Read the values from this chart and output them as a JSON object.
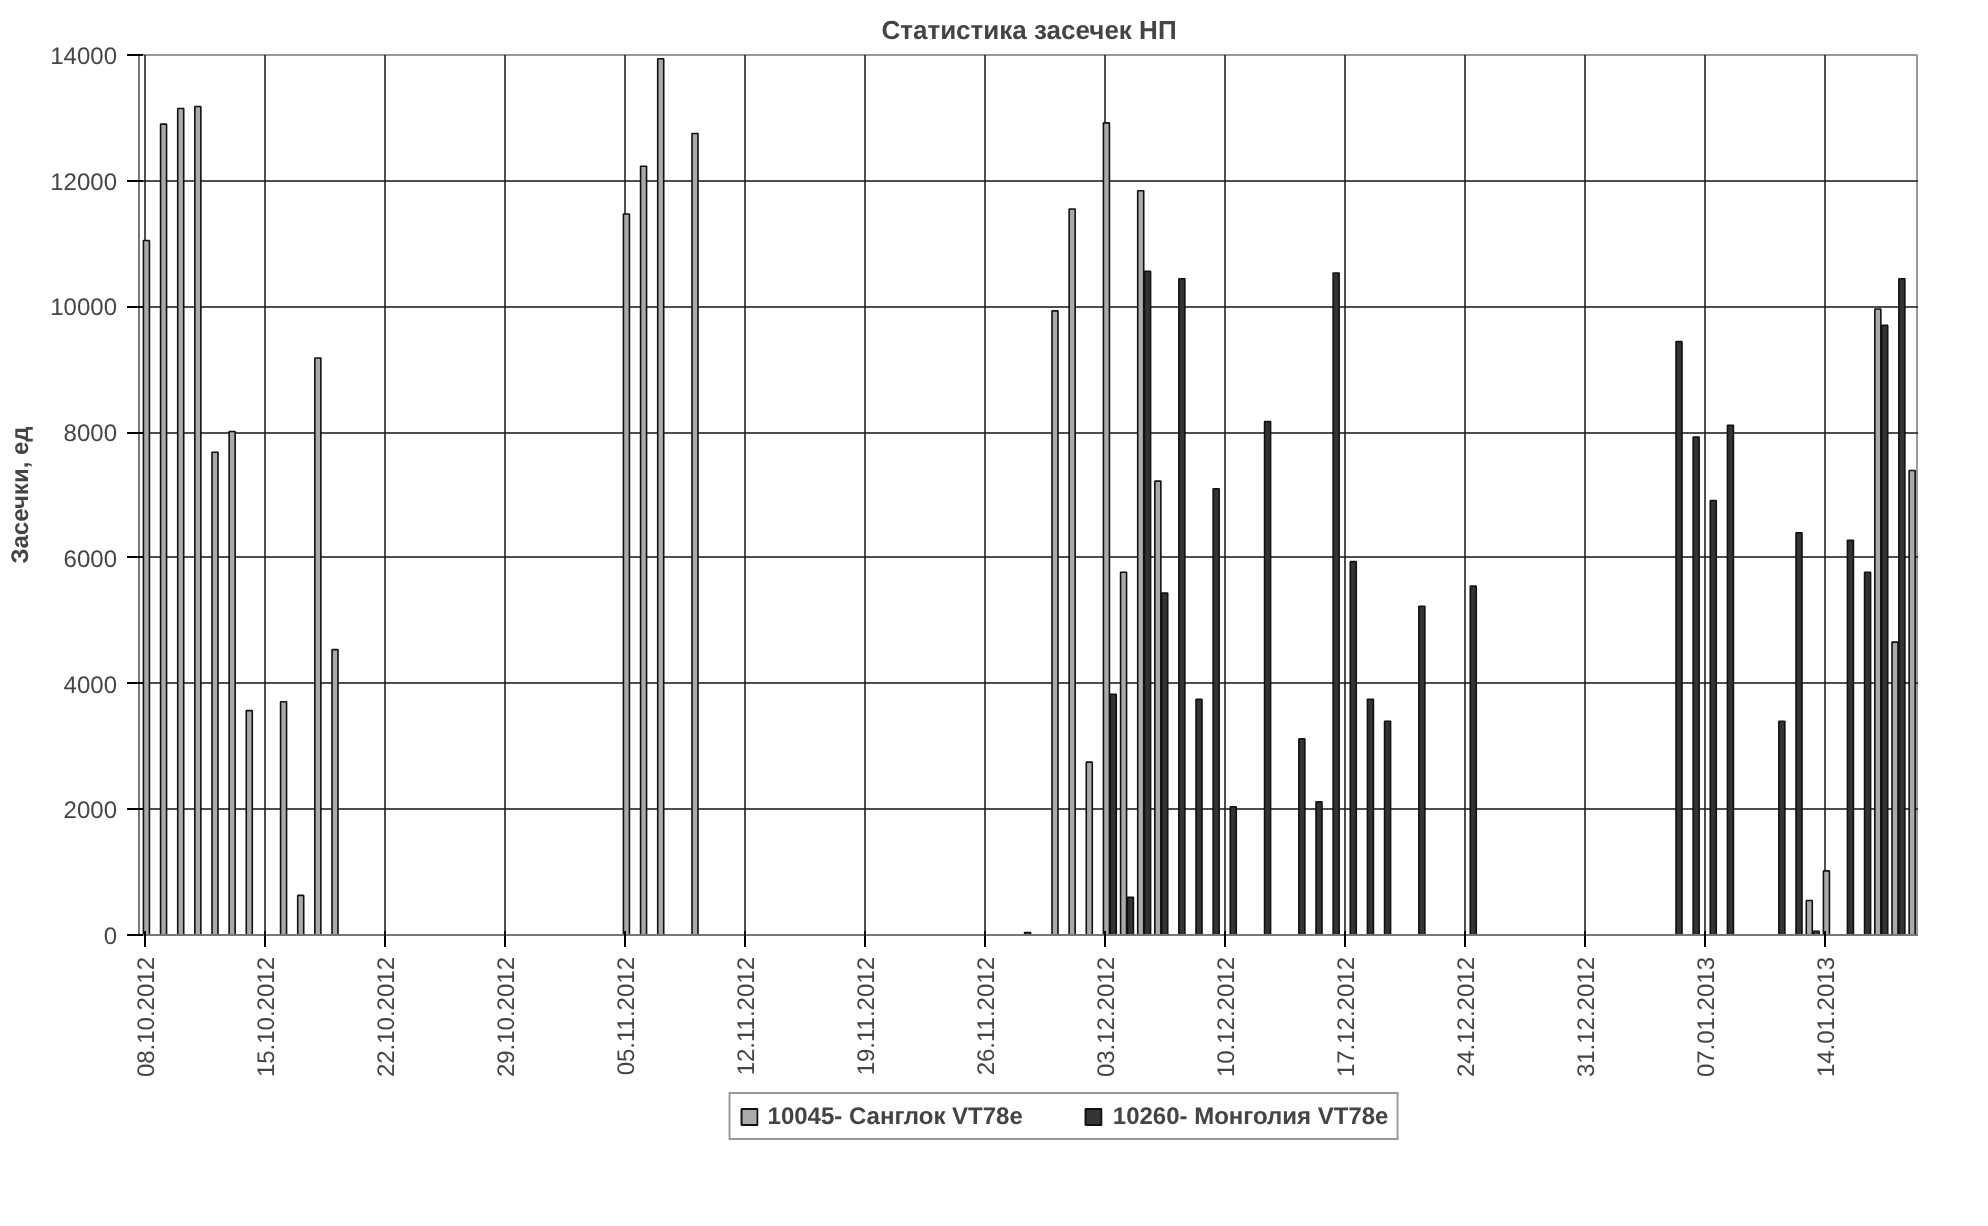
{
  "chart_data": {
    "type": "bar",
    "title": "Статистика засечек НП",
    "ylabel": "Засечки, ед",
    "xlim": [
      "2012-10-07T16:00",
      "2013-01-19T12:00"
    ],
    "ylim": [
      0,
      14000
    ],
    "yticks": [
      0,
      2000,
      4000,
      6000,
      8000,
      10000,
      12000,
      14000
    ],
    "xticks": [
      {
        "value": "2012-10-08",
        "label": "08.10.2012"
      },
      {
        "value": "2012-10-15",
        "label": "15.10.2012"
      },
      {
        "value": "2012-10-22",
        "label": "22.10.2012"
      },
      {
        "value": "2012-10-29",
        "label": "29.10.2012"
      },
      {
        "value": "2012-11-05",
        "label": "05.11.2012"
      },
      {
        "value": "2012-11-12",
        "label": "12.11.2012"
      },
      {
        "value": "2012-11-19",
        "label": "19.11.2012"
      },
      {
        "value": "2012-11-26",
        "label": "26.11.2012"
      },
      {
        "value": "2012-12-03",
        "label": "03.12.2012"
      },
      {
        "value": "2012-12-10",
        "label": "10.12.2012"
      },
      {
        "value": "2012-12-17",
        "label": "17.12.2012"
      },
      {
        "value": "2012-12-24",
        "label": "24.12.2012"
      },
      {
        "value": "2012-12-31",
        "label": "31.12.2012"
      },
      {
        "value": "2013-01-07",
        "label": "07.01.2013"
      },
      {
        "value": "2013-01-14",
        "label": "14.01.2013"
      }
    ],
    "grid": true,
    "legend": "bottom",
    "series": [
      {
        "name": "10045- Санглок VT78е",
        "color": "#aaaaaa",
        "x": [
          "2012-10-08",
          "2012-10-09",
          "2012-10-10",
          "2012-10-11",
          "2012-10-12",
          "2012-10-13",
          "2012-10-14",
          "2012-10-16",
          "2012-10-17",
          "2012-10-18",
          "2012-10-19",
          "2012-11-05",
          "2012-11-06",
          "2012-11-07",
          "2012-11-09",
          "2012-11-30",
          "2012-12-01",
          "2012-12-02",
          "2012-12-03",
          "2012-12-04",
          "2012-12-05",
          "2012-12-06",
          "2013-01-13",
          "2013-01-14",
          "2013-01-17",
          "2013-01-18",
          "2013-01-19"
        ],
        "values": [
          11050,
          12900,
          13150,
          13180,
          7680,
          8010,
          3570,
          3710,
          630,
          9180,
          4540,
          11470,
          12230,
          13940,
          12750,
          9930,
          11550,
          2750,
          12920,
          5770,
          11840,
          7220,
          550,
          1020,
          9960,
          4660,
          7390
        ]
      },
      {
        "name": "10260- Монголия VT78е",
        "color": "#333333",
        "x": [
          "2012-11-28",
          "2012-12-03",
          "2012-12-04",
          "2012-12-05",
          "2012-12-06",
          "2012-12-07",
          "2012-12-08",
          "2012-12-09",
          "2012-12-10",
          "2012-12-12",
          "2012-12-14",
          "2012-12-15",
          "2012-12-16",
          "2012-12-17",
          "2012-12-18",
          "2012-12-19",
          "2012-12-21",
          "2012-12-24",
          "2013-01-05",
          "2013-01-06",
          "2013-01-07",
          "2013-01-08",
          "2013-01-11",
          "2013-01-12",
          "2013-01-13",
          "2013-01-15",
          "2013-01-16",
          "2013-01-17",
          "2013-01-18"
        ],
        "values": [
          40,
          3830,
          600,
          10560,
          5440,
          10440,
          3750,
          7100,
          2040,
          8170,
          3120,
          2120,
          10530,
          5940,
          3750,
          3400,
          5230,
          5550,
          9440,
          7920,
          6910,
          8110,
          3400,
          6400,
          60,
          6280,
          5770,
          9700,
          10440
        ]
      }
    ]
  }
}
